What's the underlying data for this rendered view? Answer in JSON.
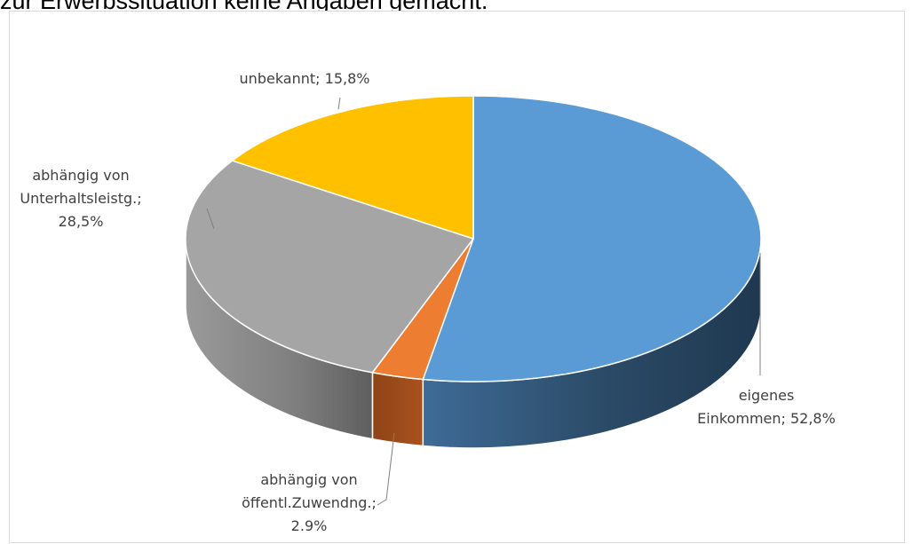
{
  "heading": "zur Erwerbssituation keine Angaben gemacht.",
  "chart_data": {
    "type": "pie",
    "style": "3d-pie",
    "title": "",
    "slices": [
      {
        "label": "eigenes Einkommen",
        "value": 52.8,
        "value_label": "52,8%",
        "color": "#5b9bd5"
      },
      {
        "label": "abhängig von öffentl.Zuwendng.",
        "value": 2.9,
        "value_label": "2.9%",
        "color": "#ed7d31"
      },
      {
        "label": "abhängig von Unterhaltsleistg.",
        "value": 28.5,
        "value_label": "28,5%",
        "color": "#a5a5a5"
      },
      {
        "label": "unbekannt",
        "value": 15.8,
        "value_label": "15,8%",
        "color": "#ffc000"
      }
    ],
    "data_labels": [
      {
        "lines": [
          "unbekannt; 15,8%"
        ]
      },
      {
        "lines": [
          "abhängig von",
          "Unterhaltsleistg.;",
          "28,5%"
        ]
      },
      {
        "lines": [
          "eigenes",
          "Einkommen; 52,8%"
        ]
      },
      {
        "lines": [
          "abhängig von",
          "öffentl.Zuwendng.;",
          "2.9%"
        ]
      }
    ]
  }
}
